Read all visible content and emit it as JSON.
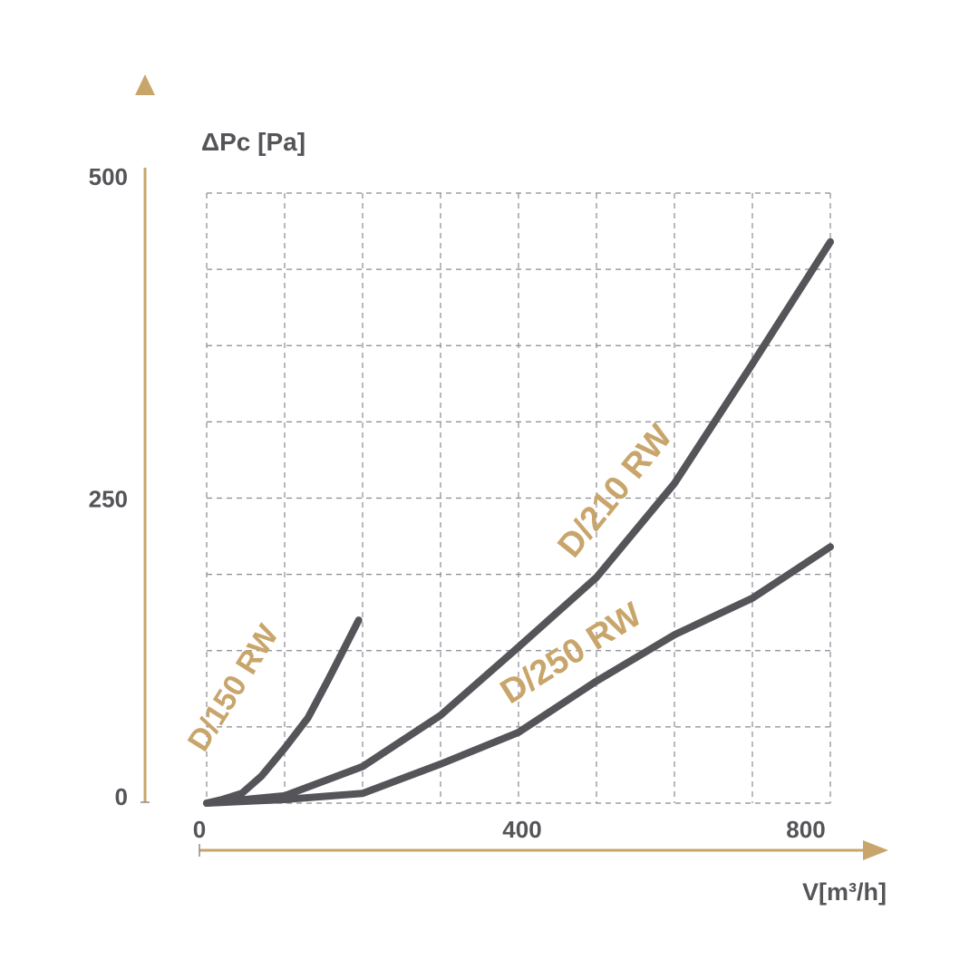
{
  "chart_data": {
    "type": "line",
    "title": "",
    "ylabel": "ΔPc [Pa]",
    "xlabel": "V[m³/h]",
    "xlim": [
      0,
      800
    ],
    "ylim": [
      0,
      500
    ],
    "x_ticks": [
      {
        "value": 0,
        "label": "0"
      },
      {
        "value": 400,
        "label": "400"
      },
      {
        "value": 800,
        "label": "800"
      }
    ],
    "y_ticks": [
      {
        "value": 0,
        "label": "0"
      },
      {
        "value": 250,
        "label": "250"
      },
      {
        "value": 500,
        "label": "500"
      }
    ],
    "grid": true,
    "series": [
      {
        "name": "D/150 RW",
        "x": [
          0,
          20,
          45,
          70,
          100,
          130,
          155,
          175,
          195
        ],
        "y": [
          0,
          3,
          8,
          22,
          45,
          70,
          100,
          125,
          150
        ]
      },
      {
        "name": "D/210 RW",
        "x": [
          0,
          100,
          200,
          300,
          400,
          500,
          600,
          700,
          800
        ],
        "y": [
          0,
          6,
          30,
          72,
          128,
          185,
          262,
          360,
          460
        ]
      },
      {
        "name": "D/250 RW",
        "x": [
          0,
          100,
          200,
          300,
          400,
          500,
          600,
          700,
          800
        ],
        "y": [
          0,
          3,
          8,
          32,
          58,
          100,
          138,
          168,
          210
        ]
      }
    ],
    "colors": {
      "line": "#555458",
      "accent": "#c8a56b",
      "grid": "#8a8a92",
      "text": "#555458"
    }
  }
}
